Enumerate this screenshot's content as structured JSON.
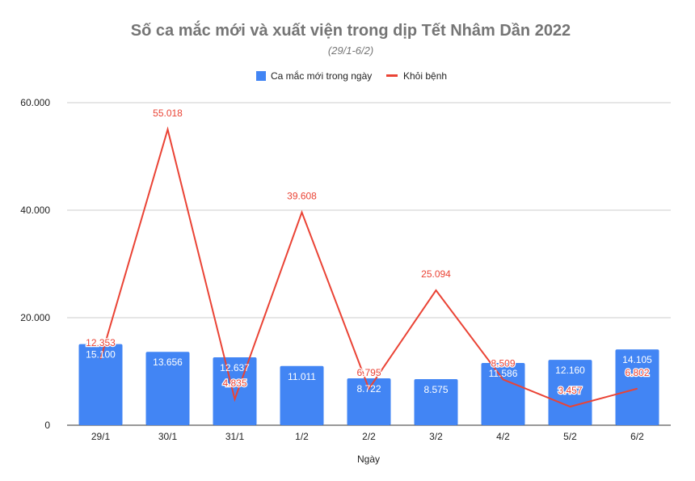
{
  "chart_data": {
    "type": "bar+line",
    "title": "Số ca mắc mới và xuất viện trong dịp Tết Nhâm Dần 2022",
    "subtitle": "(29/1-6/2)",
    "xlabel": "Ngày",
    "ylabel": "",
    "ylim": [
      0,
      60000
    ],
    "yticks": [
      0,
      20000,
      40000,
      60000
    ],
    "ytick_labels": [
      "0",
      "20.000",
      "40.000",
      "60.000"
    ],
    "grid": true,
    "legend_position": "top-center",
    "categories": [
      "29/1",
      "30/1",
      "31/1",
      "1/2",
      "2/2",
      "3/2",
      "4/2",
      "5/2",
      "6/2"
    ],
    "series": [
      {
        "name": "Ca mắc mới trong ngày",
        "type": "bar",
        "color": "#4285f4",
        "values": [
          15100,
          13656,
          12637,
          11011,
          8722,
          8575,
          11586,
          12160,
          14105
        ],
        "labels": [
          "15.100",
          "13.656",
          "12.637",
          "11.011",
          "8.722",
          "8.575",
          "11.586",
          "12.160",
          "14.105"
        ]
      },
      {
        "name": "Khỏi bệnh",
        "type": "line",
        "color": "#ea4335",
        "values": [
          12353,
          55018,
          4835,
          39608,
          6795,
          25094,
          8509,
          3457,
          6802
        ],
        "labels": [
          "12.353",
          "55.018",
          "4.835",
          "39.608",
          "6.795",
          "25.094",
          "8.509",
          "3.457",
          "6.802"
        ]
      }
    ]
  }
}
